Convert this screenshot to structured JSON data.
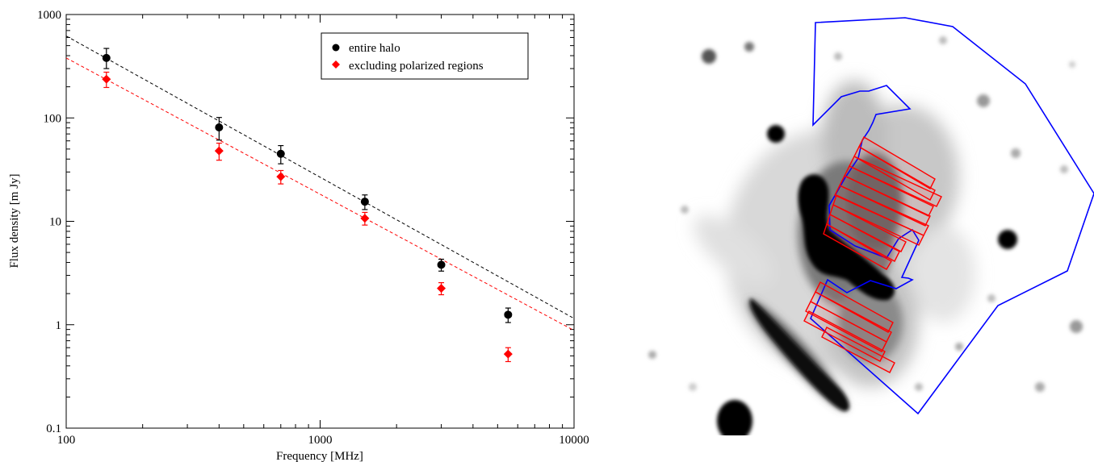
{
  "chart_data": {
    "type": "scatter",
    "title": "",
    "xlabel": "Frequency [MHz]",
    "ylabel": "Flux density [m Jy]",
    "xscale": "log",
    "yscale": "log",
    "xlim": [
      100,
      10000
    ],
    "ylim": [
      0.1,
      1000
    ],
    "x_ticks": [
      100,
      1000,
      10000
    ],
    "x_tick_labels": [
      "100",
      "1000",
      "10000"
    ],
    "y_ticks": [
      0.1,
      1,
      10,
      100,
      1000
    ],
    "y_tick_labels": [
      "0.1",
      "1",
      "10",
      "100",
      "1000"
    ],
    "grid": false,
    "legend_position": "top-right",
    "series": [
      {
        "name": "entire halo",
        "marker": "circle",
        "color": "#000000",
        "x": [
          144,
          400,
          700,
          1500,
          3000,
          5500
        ],
        "y": [
          380,
          81,
          45,
          15.5,
          3.8,
          1.25
        ],
        "err_low": [
          80,
          20,
          9,
          2.5,
          0.5,
          0.2
        ],
        "err_high": [
          90,
          20,
          9,
          2.5,
          0.5,
          0.2
        ],
        "fit": {
          "x": [
            100,
            10000
          ],
          "y": [
            620,
            1.15
          ]
        }
      },
      {
        "name": "excluding polarized regions",
        "marker": "diamond",
        "color": "#ff0000",
        "x": [
          144,
          400,
          700,
          1500,
          3000,
          5500
        ],
        "y": [
          237,
          48,
          27,
          10.7,
          2.25,
          0.52
        ],
        "err_low": [
          40,
          9,
          4,
          1.5,
          0.3,
          0.08
        ],
        "err_high": [
          40,
          9,
          4,
          1.5,
          0.3,
          0.08
        ],
        "fit": {
          "x": [
            100,
            10000
          ],
          "y": [
            380,
            0.88
          ]
        }
      }
    ]
  },
  "map": {
    "background": "#ffffff",
    "source_color": "#000000",
    "region_outline_color": "#0000ff",
    "polarized_box_color": "#ff0000"
  }
}
